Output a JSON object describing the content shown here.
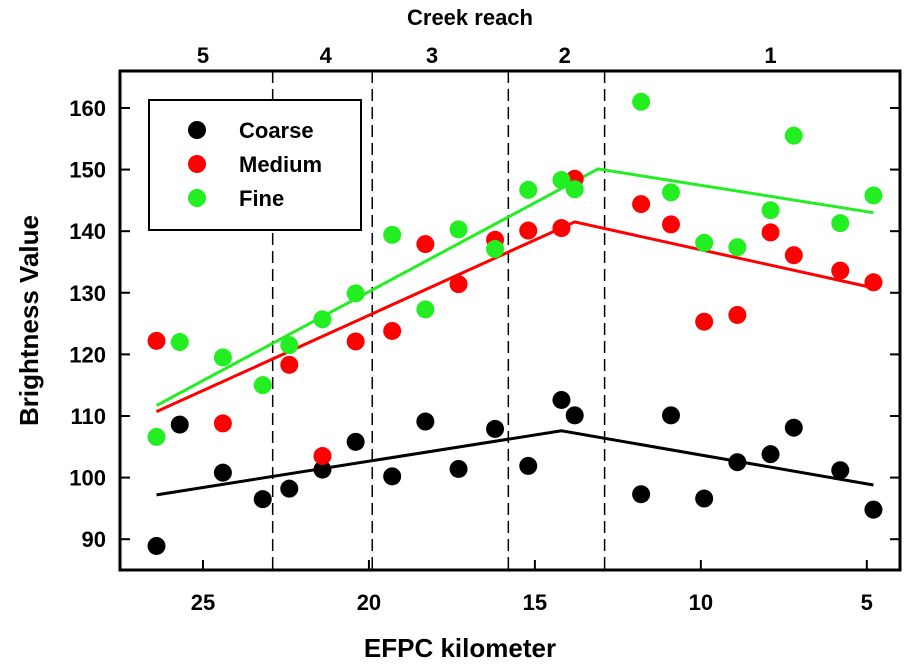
{
  "chart_data": {
    "type": "scatter",
    "title": "Creek reach",
    "xlabel": "EFPC kilometer",
    "ylabel": "Brightness Value",
    "x_reversed": true,
    "xlim": [
      27.5,
      4
    ],
    "ylim": [
      85,
      166
    ],
    "x_ticks": [
      25,
      20,
      15,
      10,
      5
    ],
    "y_ticks": [
      90,
      100,
      110,
      120,
      130,
      140,
      150,
      160
    ],
    "reach_boundaries": [
      22.9,
      19.9,
      15.8,
      12.9
    ],
    "reach_labels": [
      {
        "label": "5",
        "x": 25
      },
      {
        "label": "4",
        "x": 21.3
      },
      {
        "label": "3",
        "x": 18.1
      },
      {
        "label": "2",
        "x": 14.1
      },
      {
        "label": "1",
        "x": 7.9
      }
    ],
    "legend_position": "top-left",
    "series": [
      {
        "name": "Coarse",
        "color": "#000000",
        "points": [
          [
            26.4,
            88.9
          ],
          [
            25.7,
            108.6
          ],
          [
            24.4,
            100.8
          ],
          [
            23.2,
            96.5
          ],
          [
            22.4,
            98.2
          ],
          [
            21.4,
            101.3
          ],
          [
            20.4,
            105.8
          ],
          [
            19.3,
            100.2
          ],
          [
            18.3,
            109.1
          ],
          [
            17.3,
            101.4
          ],
          [
            16.2,
            107.9
          ],
          [
            15.2,
            101.9
          ],
          [
            14.2,
            112.6
          ],
          [
            13.8,
            110.1
          ],
          [
            11.8,
            97.3
          ],
          [
            10.9,
            110.1
          ],
          [
            9.9,
            96.6
          ],
          [
            8.9,
            102.5
          ],
          [
            7.9,
            103.8
          ],
          [
            7.2,
            108.1
          ],
          [
            5.8,
            101.2
          ],
          [
            4.8,
            94.8
          ]
        ],
        "trend": [
          [
            26.4,
            97.2
          ],
          [
            14.2,
            107.6
          ],
          [
            4.8,
            98.8
          ]
        ]
      },
      {
        "name": "Medium",
        "color": "#ff0000",
        "points": [
          [
            26.4,
            122.2
          ],
          [
            24.4,
            108.8
          ],
          [
            22.4,
            118.3
          ],
          [
            21.4,
            103.5
          ],
          [
            20.4,
            122.1
          ],
          [
            19.3,
            123.8
          ],
          [
            18.3,
            137.9
          ],
          [
            17.3,
            131.4
          ],
          [
            16.2,
            138.6
          ],
          [
            15.2,
            140.1
          ],
          [
            14.2,
            140.5
          ],
          [
            13.8,
            148.5
          ],
          [
            11.8,
            144.4
          ],
          [
            10.9,
            141.1
          ],
          [
            9.9,
            125.3
          ],
          [
            8.9,
            126.4
          ],
          [
            7.9,
            139.8
          ],
          [
            7.2,
            136.1
          ],
          [
            5.8,
            133.6
          ],
          [
            4.8,
            131.7
          ]
        ],
        "trend": [
          [
            26.4,
            110.7
          ],
          [
            13.8,
            141.5
          ],
          [
            4.8,
            130.8
          ]
        ]
      },
      {
        "name": "Fine",
        "color": "#22ee22",
        "points": [
          [
            26.4,
            106.6
          ],
          [
            25.7,
            122.0
          ],
          [
            24.4,
            119.5
          ],
          [
            23.2,
            115.0
          ],
          [
            22.4,
            121.5
          ],
          [
            21.4,
            125.7
          ],
          [
            20.4,
            129.9
          ],
          [
            19.3,
            139.4
          ],
          [
            18.3,
            127.3
          ],
          [
            17.3,
            140.3
          ],
          [
            16.2,
            137.1
          ],
          [
            15.2,
            146.7
          ],
          [
            14.2,
            148.3
          ],
          [
            13.8,
            146.8
          ],
          [
            11.8,
            161.0
          ],
          [
            10.9,
            146.3
          ],
          [
            9.9,
            138.1
          ],
          [
            8.9,
            137.4
          ],
          [
            7.9,
            143.4
          ],
          [
            7.2,
            155.5
          ],
          [
            5.8,
            141.3
          ],
          [
            4.8,
            145.8
          ]
        ],
        "trend": [
          [
            26.4,
            111.7
          ],
          [
            13.1,
            150.1
          ],
          [
            4.8,
            143.0
          ]
        ]
      }
    ]
  }
}
